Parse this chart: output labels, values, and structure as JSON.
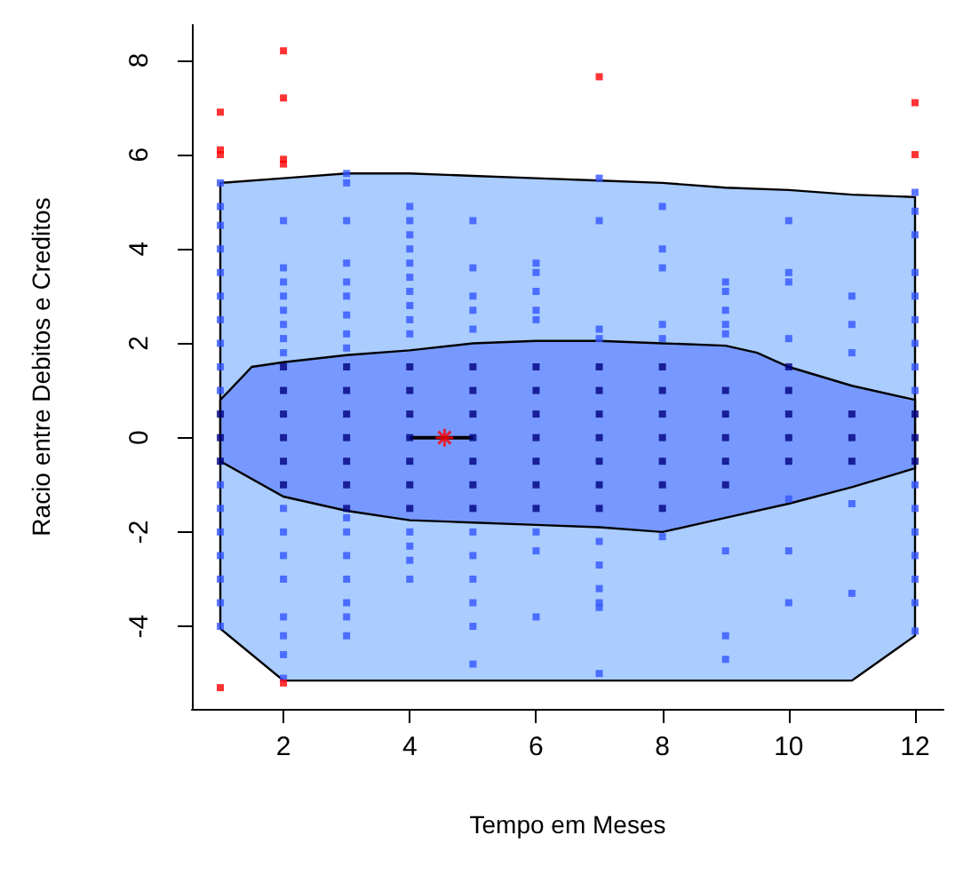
{
  "chart_data": {
    "type": "scatter",
    "xlabel": "Tempo em Meses",
    "ylabel": "Racio entre Debitos e Creditos",
    "xlim": [
      0.55,
      12.45
    ],
    "ylim": [
      -5.75,
      8.75
    ],
    "xticks": [
      2,
      4,
      6,
      8,
      10,
      12
    ],
    "yticks": [
      -4,
      -2,
      0,
      2,
      4,
      6,
      8
    ],
    "grid": false,
    "series": [
      {
        "type": "area",
        "color": "#aaccff",
        "x": [
          1,
          2,
          3,
          4,
          5,
          6,
          7,
          8,
          9,
          10,
          11,
          12,
          12,
          11,
          2,
          1
        ],
        "values": [
          5.4,
          5.5,
          5.6,
          5.6,
          5.55,
          5.5,
          5.45,
          5.4,
          5.3,
          5.25,
          5.15,
          5.1,
          -4.2,
          -5.15,
          -5.15,
          -4.05
        ]
      },
      {
        "type": "area",
        "color": "#7799ff",
        "x": [
          1,
          1.5,
          2,
          3,
          4,
          5,
          6,
          7,
          8,
          9,
          9.5,
          10,
          11,
          12,
          12,
          11,
          10,
          9,
          8,
          7,
          6,
          5,
          4,
          3,
          2,
          1
        ],
        "values": [
          0.8,
          1.5,
          1.6,
          1.75,
          1.85,
          2.0,
          2.05,
          2.05,
          2.0,
          1.95,
          1.8,
          1.5,
          1.1,
          0.8,
          -0.65,
          -1.05,
          -1.4,
          -1.7,
          -2.0,
          -1.9,
          -1.85,
          -1.8,
          -1.75,
          -1.55,
          -1.25,
          -0.5
        ]
      },
      {
        "color": "#3355ff",
        "marker": "square",
        "x": [
          1,
          1,
          1,
          1,
          1,
          1,
          1,
          1,
          1,
          1,
          1,
          1,
          1,
          1,
          1,
          1,
          1,
          2,
          2,
          2,
          2,
          2,
          2,
          2,
          2,
          2,
          2,
          2,
          2,
          2,
          2,
          2,
          2,
          3,
          3,
          3,
          3,
          3,
          3,
          3,
          3,
          3,
          3,
          3,
          3,
          3,
          3,
          3,
          3,
          4,
          4,
          4,
          4,
          4,
          4,
          4,
          4,
          4,
          4,
          4,
          4,
          4,
          4,
          5,
          5,
          5,
          5,
          5,
          5,
          5,
          5,
          5,
          5,
          5,
          6,
          6,
          6,
          6,
          6,
          6,
          6,
          6,
          7,
          7,
          7,
          7,
          7,
          7,
          7,
          7,
          7,
          7,
          8,
          8,
          8,
          8,
          8,
          8,
          9,
          9,
          9,
          9,
          9,
          9,
          9,
          9,
          10,
          10,
          10,
          10,
          10,
          10,
          10,
          11,
          11,
          11,
          11,
          11,
          12,
          12,
          12,
          12,
          12,
          12,
          12,
          12,
          12,
          12,
          12,
          12,
          12,
          12,
          12,
          12
        ],
        "values": [
          5.4,
          4.9,
          4.5,
          4.0,
          3.5,
          3.0,
          2.5,
          2.0,
          1.5,
          1.0,
          -1.0,
          -1.5,
          -2.0,
          -2.5,
          -3.0,
          -3.5,
          -4.0,
          4.6,
          3.6,
          3.3,
          3.0,
          2.7,
          2.4,
          2.1,
          1.8,
          -1.5,
          -2.0,
          -2.5,
          -3.0,
          -3.8,
          -4.2,
          -4.6,
          -5.1,
          5.6,
          5.4,
          4.6,
          3.7,
          3.3,
          3.0,
          2.6,
          2.2,
          1.9,
          -1.7,
          -2.0,
          -2.5,
          -3.0,
          -3.5,
          -3.8,
          -4.2,
          4.9,
          4.6,
          4.3,
          4.0,
          3.7,
          3.4,
          3.1,
          2.8,
          2.5,
          2.2,
          -2.0,
          -2.3,
          -2.6,
          -3.0,
          4.6,
          3.6,
          3.0,
          2.7,
          2.3,
          -2.0,
          -2.5,
          -3.0,
          -3.5,
          -4.0,
          -4.8,
          3.7,
          3.5,
          3.1,
          2.7,
          2.5,
          -2.0,
          -2.4,
          -3.8,
          5.5,
          4.6,
          2.3,
          2.1,
          -2.2,
          -2.7,
          -3.2,
          -3.5,
          -3.6,
          -5.0,
          4.9,
          4.0,
          3.6,
          2.4,
          2.1,
          -2.1,
          3.3,
          3.1,
          2.7,
          2.4,
          2.2,
          -2.4,
          -4.2,
          -4.7,
          4.6,
          3.5,
          3.3,
          2.1,
          -1.3,
          -2.4,
          -3.5,
          3.0,
          2.4,
          1.8,
          -1.4,
          -3.3,
          5.2,
          4.8,
          4.3,
          3.5,
          3.0,
          2.5,
          2.0,
          1.5,
          1.0,
          -1.0,
          -1.5,
          -2.0,
          -2.5,
          -3.0,
          -3.5,
          -4.1
        ]
      },
      {
        "color": "#000080",
        "marker": "square",
        "x": [
          1,
          1,
          1,
          2,
          2,
          2,
          2,
          2,
          2,
          3,
          3,
          3,
          3,
          3,
          3,
          3,
          4,
          4,
          4,
          4,
          4,
          4,
          4,
          5,
          5,
          5,
          5,
          5,
          5,
          5,
          6,
          6,
          6,
          6,
          6,
          6,
          6,
          7,
          7,
          7,
          7,
          7,
          7,
          7,
          8,
          8,
          8,
          8,
          8,
          8,
          8,
          9,
          9,
          9,
          9,
          9,
          10,
          10,
          10,
          10,
          10,
          11,
          11,
          11,
          12,
          12,
          12
        ],
        "values": [
          -0.5,
          0,
          0.5,
          -1,
          -0.5,
          0,
          0.5,
          1,
          1.5,
          -1.5,
          -1,
          -0.5,
          0,
          0.5,
          1,
          1.5,
          -1.5,
          -1,
          -0.5,
          0,
          0.5,
          1,
          1.5,
          -1.5,
          -1,
          -0.5,
          0,
          0.5,
          1,
          1.5,
          -1.5,
          -1,
          -0.5,
          0,
          0.5,
          1,
          1.5,
          -1.5,
          -1,
          -0.5,
          0,
          0.5,
          1,
          1.5,
          -1.5,
          -1,
          -0.5,
          0,
          0.5,
          1,
          1.5,
          -1,
          -0.5,
          0,
          0.5,
          1,
          -0.5,
          0,
          0.5,
          1,
          1.5,
          -0.5,
          0,
          0.5,
          -0.5,
          0,
          0.5
        ]
      },
      {
        "type": "line",
        "color": "#000000",
        "marker": "none",
        "x": [
          4,
          5
        ],
        "values": [
          0,
          0
        ]
      },
      {
        "color": "#ff0000",
        "marker": "square",
        "x": [
          1,
          1,
          1,
          1,
          2,
          2,
          2,
          2,
          2,
          7,
          12,
          12
        ],
        "values": [
          6.9,
          6.1,
          6.0,
          -5.3,
          8.2,
          7.2,
          5.9,
          5.8,
          -5.2,
          7.65,
          7.1,
          6.0
        ]
      },
      {
        "color": "#ff0000",
        "marker": "cross",
        "x": [
          4.55
        ],
        "values": [
          0
        ]
      }
    ]
  }
}
